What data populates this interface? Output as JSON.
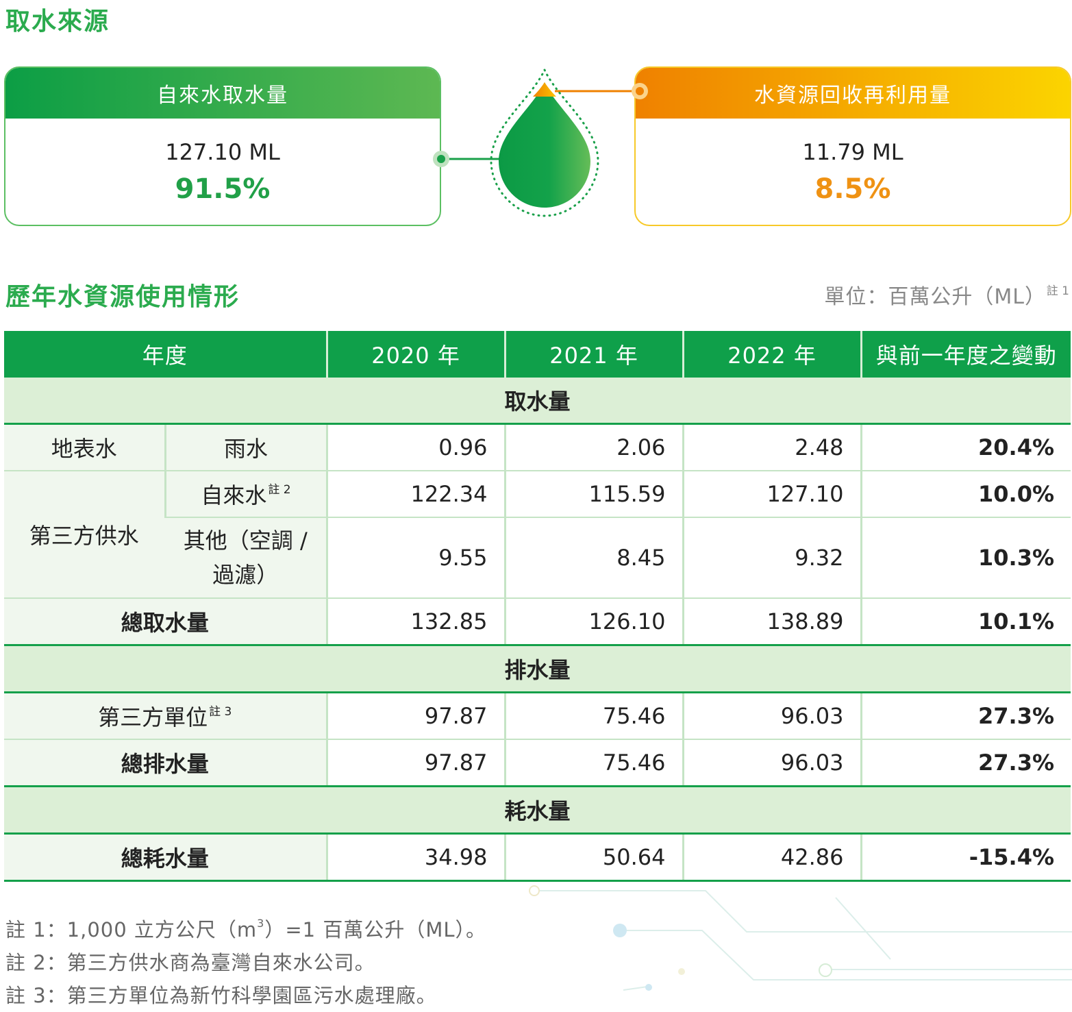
{
  "section1": {
    "title": "取水來源"
  },
  "cards": {
    "tap": {
      "title": "自來水取水量",
      "amount": "127.10 ML",
      "percent": "91.5%"
    },
    "recycle": {
      "title": "水資源回收再利用量",
      "amount": "11.79 ML",
      "percent": "8.5%"
    }
  },
  "section2": {
    "title": "歷年水資源使用情形",
    "unit": "單位：百萬公升（ML）",
    "unit_note": "註 1"
  },
  "table": {
    "headers": [
      "年度",
      "2020 年",
      "2021 年",
      "2022 年",
      "與前一年度之變動"
    ],
    "sections": {
      "withdrawal": "取水量",
      "discharge": "排水量",
      "consumption": "耗水量"
    },
    "rows": {
      "surface": {
        "group": "地表水",
        "label": "雨水",
        "values": [
          "0.96",
          "2.06",
          "2.48"
        ],
        "change": "20.4%"
      },
      "tap": {
        "group": "第三方供水",
        "label": "自來水",
        "note": "註 2",
        "values": [
          "122.34",
          "115.59",
          "127.10"
        ],
        "change": "10.0%"
      },
      "other": {
        "label": "其他（空調 / 過濾）",
        "values": [
          "9.55",
          "8.45",
          "9.32"
        ],
        "change": "10.3%"
      },
      "total_withdrawal": {
        "label": "總取水量",
        "values": [
          "132.85",
          "126.10",
          "138.89"
        ],
        "change": "10.1%"
      },
      "third_party": {
        "label": "第三方單位",
        "note": "註 3",
        "values": [
          "97.87",
          "75.46",
          "96.03"
        ],
        "change": "27.3%"
      },
      "total_discharge": {
        "label": "總排水量",
        "values": [
          "97.87",
          "75.46",
          "96.03"
        ],
        "change": "27.3%"
      },
      "total_consumption": {
        "label": "總耗水量",
        "values": [
          "34.98",
          "50.64",
          "42.86"
        ],
        "change": "-15.4%"
      }
    }
  },
  "footnotes": {
    "n1_a": "註 1：1,000 立方公尺（m",
    "n1_sup": "3",
    "n1_b": "）=1 百萬公升（ML）。",
    "n2": "註 2：第三方供水商為臺灣自來水公司。",
    "n3": "註 3：第三方單位為新竹科學園區污水處理廠。"
  },
  "colors": {
    "green": "#0fa04a",
    "light_green": "#dcefd6",
    "orange": "#ef8100",
    "yellow": "#fbd400"
  }
}
